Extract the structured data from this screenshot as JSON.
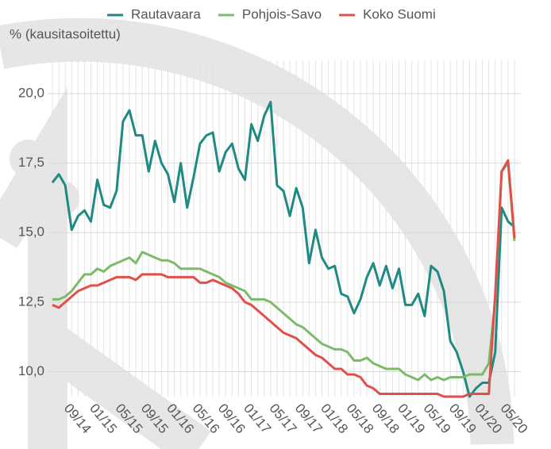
{
  "chart_data": {
    "type": "line",
    "y_axis_label": "% (kausitasoitettu)",
    "categories": [
      null,
      null,
      null,
      null,
      "09/14",
      null,
      null,
      null,
      "01/15",
      null,
      null,
      null,
      "05/15",
      null,
      null,
      null,
      "09/15",
      null,
      null,
      null,
      "01/16",
      null,
      null,
      null,
      "05/16",
      null,
      null,
      null,
      "09/16",
      null,
      null,
      null,
      "01/17",
      null,
      null,
      null,
      "05/17",
      null,
      null,
      null,
      "09/17",
      null,
      null,
      null,
      "01/18",
      null,
      null,
      null,
      "05/18",
      null,
      null,
      null,
      "09/18",
      null,
      null,
      null,
      "01/19",
      null,
      null,
      null,
      "05/19",
      null,
      null,
      null,
      "09/19",
      null,
      null,
      null,
      "01/20",
      null,
      null,
      null,
      "05/20"
    ],
    "series": [
      {
        "name": "Rautavaara",
        "color": "#1f8a83",
        "values": [
          16.8,
          17.1,
          16.7,
          15.1,
          15.6,
          15.8,
          15.4,
          16.9,
          16.0,
          15.9,
          16.5,
          19.0,
          19.4,
          18.5,
          18.5,
          17.2,
          18.3,
          17.5,
          17.1,
          16.1,
          17.5,
          15.9,
          17.0,
          18.2,
          18.5,
          18.6,
          17.2,
          17.9,
          18.2,
          17.3,
          16.9,
          18.9,
          18.3,
          19.2,
          19.7,
          16.7,
          16.5,
          15.6,
          16.6,
          15.9,
          13.9,
          15.1,
          14.1,
          13.7,
          13.8,
          12.8,
          12.7,
          12.1,
          12.6,
          13.4,
          13.9,
          13.1,
          13.8,
          13.0,
          13.7,
          12.4,
          12.4,
          12.8,
          12.0,
          13.8,
          13.6,
          12.9,
          11.1,
          10.7,
          10.0,
          9.1,
          9.4,
          9.6,
          9.6,
          10.7,
          15.9,
          15.4,
          15.2
        ]
      },
      {
        "name": "Pohjois-Savo",
        "color": "#7dbb6a",
        "values": [
          12.6,
          12.6,
          12.7,
          12.9,
          13.2,
          13.5,
          13.5,
          13.7,
          13.6,
          13.8,
          13.9,
          14.0,
          14.1,
          13.9,
          14.3,
          14.2,
          14.1,
          14.0,
          14.0,
          13.9,
          13.7,
          13.7,
          13.7,
          13.7,
          13.6,
          13.5,
          13.4,
          13.2,
          13.1,
          13.0,
          12.9,
          12.6,
          12.6,
          12.6,
          12.5,
          12.3,
          12.1,
          11.9,
          11.7,
          11.6,
          11.4,
          11.2,
          11.0,
          10.9,
          10.8,
          10.8,
          10.7,
          10.4,
          10.4,
          10.5,
          10.3,
          10.2,
          10.1,
          10.1,
          10.1,
          9.9,
          9.8,
          9.7,
          9.9,
          9.7,
          9.8,
          9.7,
          9.8,
          9.8,
          9.8,
          9.9,
          9.9,
          9.9,
          10.3,
          12.6,
          17.2,
          17.5,
          14.7
        ]
      },
      {
        "name": "Koko Suomi",
        "color": "#e0504a",
        "values": [
          12.4,
          12.3,
          12.5,
          12.7,
          12.9,
          13.0,
          13.1,
          13.1,
          13.2,
          13.3,
          13.4,
          13.4,
          13.4,
          13.3,
          13.5,
          13.5,
          13.5,
          13.5,
          13.4,
          13.4,
          13.4,
          13.4,
          13.4,
          13.2,
          13.2,
          13.3,
          13.2,
          13.1,
          13.0,
          12.8,
          12.5,
          12.4,
          12.2,
          12.0,
          11.8,
          11.6,
          11.4,
          11.3,
          11.2,
          11.0,
          10.8,
          10.6,
          10.5,
          10.3,
          10.1,
          10.1,
          9.9,
          9.9,
          9.8,
          9.5,
          9.4,
          9.2,
          9.2,
          9.2,
          9.2,
          9.2,
          9.2,
          9.2,
          9.2,
          9.2,
          9.2,
          9.1,
          9.1,
          9.1,
          9.1,
          9.2,
          9.2,
          9.2,
          9.2,
          12.8,
          17.2,
          17.6,
          14.8
        ]
      }
    ],
    "ylim": [
      9.1,
      21.2
    ],
    "yticks": [
      {
        "value": 10,
        "label": "10,0"
      },
      {
        "value": 12.5,
        "label": "12,5"
      },
      {
        "value": 15,
        "label": "15,0"
      },
      {
        "value": 17.5,
        "label": "17,5"
      },
      {
        "value": 20,
        "label": "20,0"
      }
    ],
    "grid": true,
    "legend": "top"
  }
}
